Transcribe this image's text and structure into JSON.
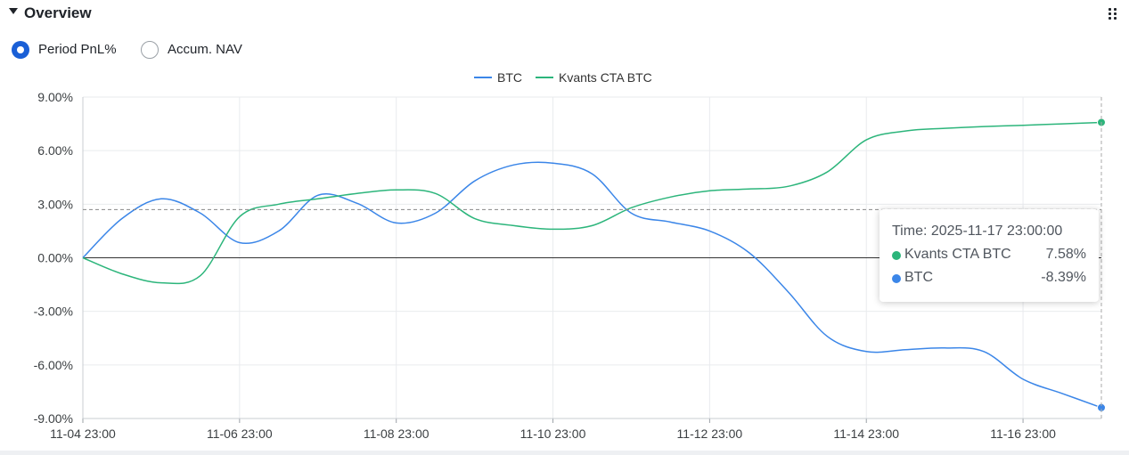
{
  "header": {
    "title": "Overview",
    "collapse_icon": "caret-down-icon",
    "drag_icon": "drag-grid-icon"
  },
  "view_toggle": {
    "options": [
      {
        "label": "Period PnL%",
        "selected": true
      },
      {
        "label": "Accum. NAV",
        "selected": false
      }
    ]
  },
  "colors": {
    "btc": "#3b86e8",
    "kvants": "#2cb57b",
    "accent": "#1a5fd6"
  },
  "chart_data": {
    "type": "line",
    "xlabel": "",
    "ylabel": "",
    "x_tick_labels": [
      "11-04 23:00",
      "11-06 23:00",
      "11-08 23:00",
      "11-10 23:00",
      "11-12 23:00",
      "11-14 23:00",
      "11-16 23:00"
    ],
    "y_tick_labels": [
      "9.00%",
      "6.00%",
      "3.00%",
      "0.00%",
      "-3.00%",
      "-6.00%",
      "-9.00%"
    ],
    "ylim": [
      -9,
      9
    ],
    "y_unit": "%",
    "x_start": "2025-11-04 23:00:00",
    "x_end": "2025-11-17 23:00:00",
    "grid": true,
    "legend_position": "top-center",
    "series": [
      {
        "name": "BTC",
        "color": "#3b86e8",
        "points": [
          [
            "2025-11-04 23:00",
            0.0
          ],
          [
            "2025-11-05 11:00",
            2.2
          ],
          [
            "2025-11-05 23:00",
            3.3
          ],
          [
            "2025-11-06 11:00",
            2.5
          ],
          [
            "2025-11-06 23:00",
            0.85
          ],
          [
            "2025-11-07 11:00",
            1.5
          ],
          [
            "2025-11-07 23:00",
            3.5
          ],
          [
            "2025-11-08 11:00",
            3.05
          ],
          [
            "2025-11-08 23:00",
            1.95
          ],
          [
            "2025-11-09 11:00",
            2.5
          ],
          [
            "2025-11-09 23:00",
            4.3
          ],
          [
            "2025-11-10 11:00",
            5.2
          ],
          [
            "2025-11-10 23:00",
            5.3
          ],
          [
            "2025-11-11 11:00",
            4.7
          ],
          [
            "2025-11-11 23:00",
            2.5
          ],
          [
            "2025-11-12 11:00",
            2.0
          ],
          [
            "2025-11-12 23:00",
            1.5
          ],
          [
            "2025-11-13 11:00",
            0.3
          ],
          [
            "2025-11-13 23:00",
            -1.9
          ],
          [
            "2025-11-14 11:00",
            -4.4
          ],
          [
            "2025-11-14 23:00",
            -5.25
          ],
          [
            "2025-11-15 11:00",
            -5.15
          ],
          [
            "2025-11-15 23:00",
            -5.05
          ],
          [
            "2025-11-16 11:00",
            -5.25
          ],
          [
            "2025-11-16 23:00",
            -6.8
          ],
          [
            "2025-11-17 11:00",
            -7.6
          ],
          [
            "2025-11-17 23:00",
            -8.39
          ]
        ]
      },
      {
        "name": "Kvants CTA BTC",
        "color": "#2cb57b",
        "points": [
          [
            "2025-11-04 23:00",
            0.0
          ],
          [
            "2025-11-05 11:00",
            -0.9
          ],
          [
            "2025-11-05 23:00",
            -1.4
          ],
          [
            "2025-11-06 11:00",
            -1.0
          ],
          [
            "2025-11-06 23:00",
            2.3
          ],
          [
            "2025-11-07 11:00",
            3.0
          ],
          [
            "2025-11-07 23:00",
            3.3
          ],
          [
            "2025-11-08 11:00",
            3.6
          ],
          [
            "2025-11-08 23:00",
            3.8
          ],
          [
            "2025-11-09 11:00",
            3.6
          ],
          [
            "2025-11-09 23:00",
            2.2
          ],
          [
            "2025-11-10 11:00",
            1.8
          ],
          [
            "2025-11-10 23:00",
            1.6
          ],
          [
            "2025-11-11 11:00",
            1.8
          ],
          [
            "2025-11-11 23:00",
            2.8
          ],
          [
            "2025-11-12 11:00",
            3.4
          ],
          [
            "2025-11-12 23:00",
            3.75
          ],
          [
            "2025-11-13 11:00",
            3.85
          ],
          [
            "2025-11-13 23:00",
            4.0
          ],
          [
            "2025-11-14 11:00",
            4.8
          ],
          [
            "2025-11-14 23:00",
            6.6
          ],
          [
            "2025-11-15 11:00",
            7.1
          ],
          [
            "2025-11-15 23:00",
            7.25
          ],
          [
            "2025-11-16 11:00",
            7.35
          ],
          [
            "2025-11-16 23:00",
            7.42
          ],
          [
            "2025-11-17 11:00",
            7.5
          ],
          [
            "2025-11-17 23:00",
            7.58
          ]
        ]
      }
    ],
    "crosshair": {
      "x": "2025-11-17 23:00",
      "y": 2.7
    },
    "tooltip": {
      "time_label": "Time: 2025-11-17 23:00:00",
      "rows": [
        {
          "name": "Kvants CTA BTC",
          "value": "7.58%",
          "color": "#2cb57b"
        },
        {
          "name": "BTC",
          "value": "-8.39%",
          "color": "#3b86e8"
        }
      ]
    }
  }
}
